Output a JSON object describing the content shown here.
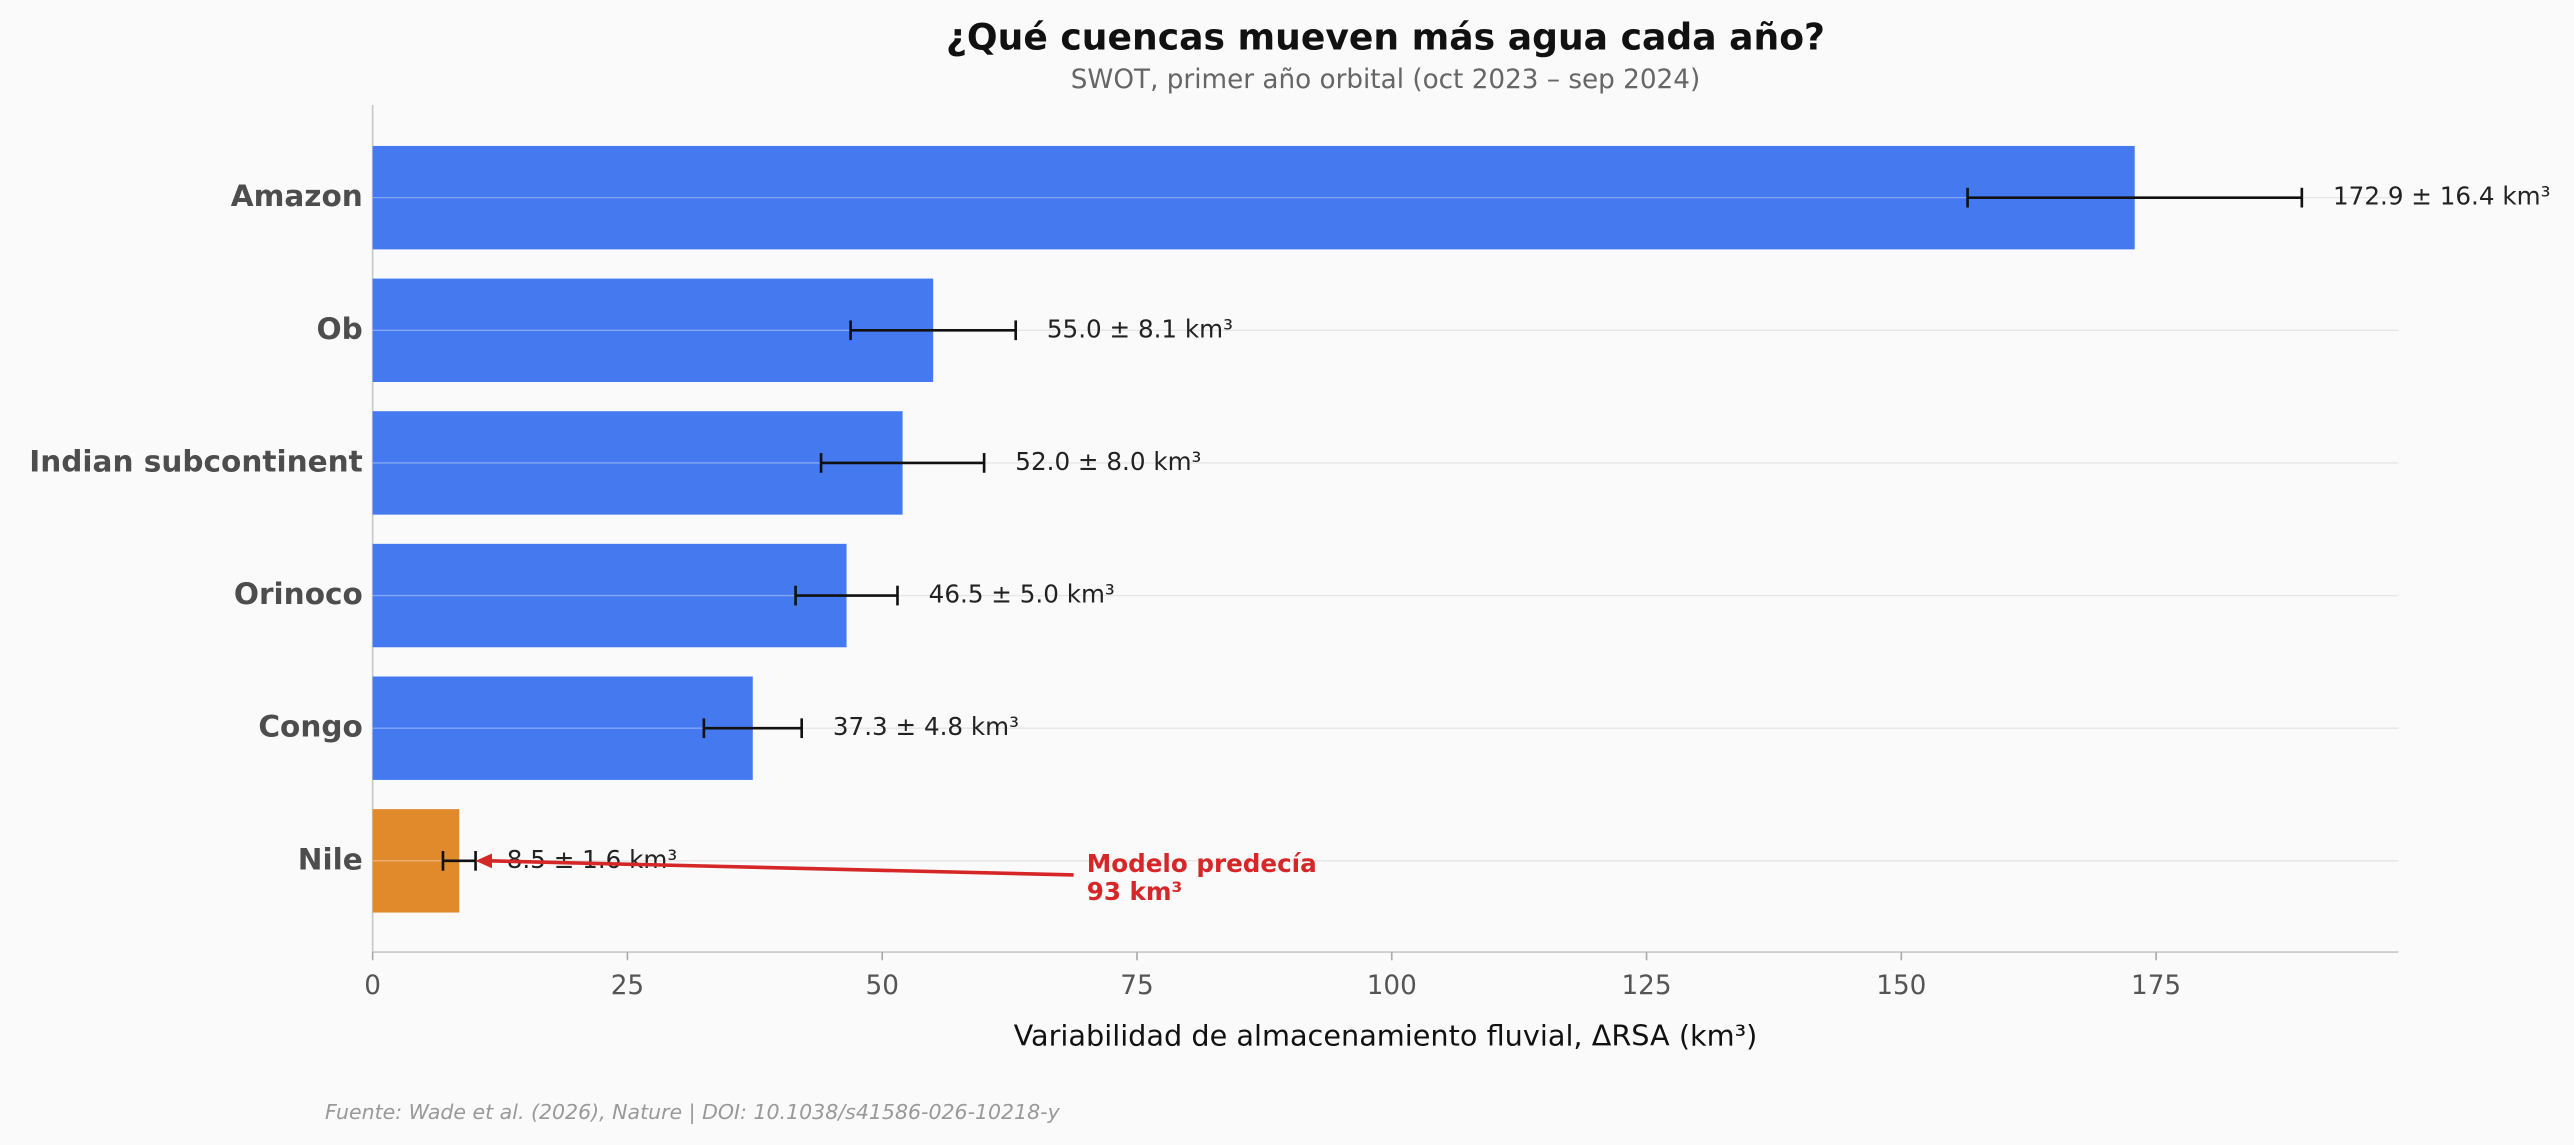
{
  "chart_data": {
    "type": "bar",
    "orientation": "horizontal",
    "title": "¿Qué cuencas mueven más agua cada año?",
    "subtitle": "SWOT, primer año orbital (oct 2023 – sep 2024)",
    "x_label": "Variabilidad de almacenamiento fluvial, ΔRSA (km³)",
    "categories": [
      "Amazon",
      "Ob",
      "Indian subcontinent",
      "Orinoco",
      "Congo",
      "Nile"
    ],
    "values": [
      172.9,
      55.0,
      52.0,
      46.5,
      37.3,
      8.5
    ],
    "errors": [
      16.4,
      8.1,
      8.0,
      5.0,
      4.8,
      1.6
    ],
    "value_labels": [
      "172.9 ± 16.4 km³",
      "55.0 ± 8.1 km³",
      "52.0 ± 8.0 km³",
      "46.5 ± 5.0 km³",
      "37.3 ± 4.8 km³",
      "8.5 ± 1.6 km³"
    ],
    "colors": [
      "#4479ef",
      "#4479ef",
      "#4479ef",
      "#4479ef",
      "#4479ef",
      "#e08a2c"
    ],
    "xlim": [
      0,
      198.77
    ],
    "xticks": [
      0,
      25,
      50,
      75,
      100,
      125,
      150,
      175
    ],
    "annotation_lines": [
      "Modelo predecía",
      "93 km³"
    ],
    "annotation_color": "#d62728",
    "source": "Fuente: Wade et al. (2026), Nature | DOI: 10.1038/s41586-026-10218-y"
  }
}
